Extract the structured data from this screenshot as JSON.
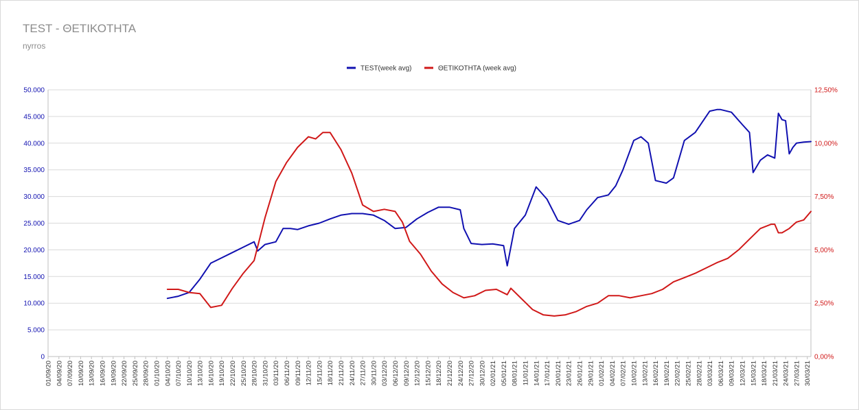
{
  "title": "TEST - ΘΕΤΙΚΟΤΗΤΑ",
  "subtitle": "nyrros",
  "colors": {
    "test": "#1010b0",
    "positivity": "#d01818",
    "grid": "#d9d9d9",
    "text": "#8c8c8c"
  },
  "chart_data": {
    "type": "line",
    "title": "TEST - ΘΕΤΙΚΟΤΗΤΑ",
    "subtitle": "nyrros",
    "legend": {
      "position": "top-center",
      "labels": [
        "TEST(week avg)",
        "ΘΕΤΙΚΟΤΗΤΑ (week avg)"
      ]
    },
    "grid": true,
    "y_left": {
      "range": [
        0,
        50000
      ],
      "ticks": [
        "0",
        "5.000",
        "10.000",
        "15.000",
        "20.000",
        "25.000",
        "30.000",
        "35.000",
        "40.000",
        "45.000",
        "50.000"
      ]
    },
    "y_right": {
      "range": [
        0,
        12.5
      ],
      "ticks": [
        "0,00%",
        "2,50%",
        "5,00%",
        "7,50%",
        "10,00%",
        "12,50%"
      ]
    },
    "x_ticks": [
      "01/09/20",
      "04/09/20",
      "07/09/20",
      "10/09/20",
      "13/09/20",
      "16/09/20",
      "19/09/20",
      "22/09/20",
      "25/09/20",
      "28/09/20",
      "01/10/20",
      "04/10/20",
      "07/10/20",
      "10/10/20",
      "13/10/20",
      "16/10/20",
      "19/10/20",
      "22/10/20",
      "25/10/20",
      "28/10/20",
      "31/10/20",
      "03/11/20",
      "06/11/20",
      "09/11/20",
      "12/11/20",
      "15/11/20",
      "18/11/20",
      "21/11/20",
      "24/11/20",
      "27/11/20",
      "30/11/20",
      "03/12/20",
      "06/12/20",
      "09/12/20",
      "12/12/20",
      "15/12/20",
      "18/12/20",
      "21/12/20",
      "24/12/20",
      "27/12/20",
      "30/12/20",
      "02/01/21",
      "05/01/21",
      "08/01/21",
      "11/01/21",
      "14/01/21",
      "17/01/21",
      "20/01/21",
      "23/01/21",
      "26/01/21",
      "29/01/21",
      "01/02/21",
      "04/02/21",
      "07/02/21",
      "10/02/21",
      "13/02/21",
      "16/02/21",
      "19/02/21",
      "22/02/21",
      "25/02/21",
      "28/02/21",
      "03/03/21",
      "06/03/21",
      "09/03/21",
      "12/03/21",
      "15/03/21",
      "18/03/21",
      "21/03/21",
      "24/03/21",
      "27/03/21",
      "30/03/21"
    ],
    "series": [
      {
        "name": "TEST(week avg)",
        "axis": "left",
        "x": [
          "04/10/20",
          "07/10/20",
          "10/10/20",
          "13/10/20",
          "16/10/20",
          "19/10/20",
          "22/10/20",
          "25/10/20",
          "28/10/20",
          "29/10/20",
          "31/10/20",
          "03/11/20",
          "05/11/20",
          "07/11/20",
          "09/11/20",
          "12/11/20",
          "15/11/20",
          "18/11/20",
          "21/11/20",
          "24/11/20",
          "27/11/20",
          "30/11/20",
          "03/12/20",
          "06/12/20",
          "09/12/20",
          "12/12/20",
          "15/12/20",
          "18/12/20",
          "21/12/20",
          "24/12/20",
          "25/12/20",
          "27/12/20",
          "30/12/20",
          "02/01/21",
          "05/01/21",
          "06/01/21",
          "08/01/21",
          "11/01/21",
          "14/01/21",
          "17/01/21",
          "20/01/21",
          "23/01/21",
          "26/01/21",
          "28/01/21",
          "31/01/21",
          "03/02/21",
          "05/02/21",
          "07/02/21",
          "10/02/21",
          "12/02/21",
          "14/02/21",
          "16/02/21",
          "19/02/21",
          "21/02/21",
          "24/02/21",
          "27/02/21",
          "01/03/21",
          "03/03/21",
          "05/03/21",
          "06/03/21",
          "09/03/21",
          "12/03/21",
          "14/03/21",
          "15/03/21",
          "17/03/21",
          "19/03/21",
          "21/03/21",
          "22/03/21",
          "23/03/21",
          "24/03/21",
          "25/03/21",
          "26/03/21",
          "27/03/21",
          "29/03/21",
          "31/03/21"
        ],
        "values": [
          10900,
          11300,
          12000,
          14500,
          17500,
          18500,
          19500,
          20500,
          21500,
          19800,
          21000,
          21500,
          24000,
          24000,
          23800,
          24500,
          25000,
          25800,
          26500,
          26800,
          26800,
          26500,
          25500,
          24000,
          24200,
          25800,
          27000,
          28000,
          28000,
          27500,
          24000,
          21200,
          21000,
          21100,
          20800,
          17000,
          24000,
          26500,
          31800,
          29500,
          25500,
          24800,
          25500,
          27500,
          29800,
          30300,
          32000,
          35000,
          40500,
          41200,
          40000,
          33000,
          32500,
          33500,
          40500,
          42000,
          44000,
          46000,
          46300,
          46300,
          45800,
          43500,
          42000,
          34500,
          36800,
          37800,
          37200,
          45600,
          44400,
          44200,
          38000,
          39200,
          40000,
          40200,
          40300
        ]
      },
      {
        "name": "ΘΕΤΙΚΟΤΗΤΑ (week avg)",
        "axis": "right",
        "x": [
          "04/10/20",
          "07/10/20",
          "10/10/20",
          "13/10/20",
          "16/10/20",
          "19/10/20",
          "22/10/20",
          "25/10/20",
          "28/10/20",
          "31/10/20",
          "03/11/20",
          "06/11/20",
          "09/11/20",
          "12/11/20",
          "14/11/20",
          "16/11/20",
          "18/11/20",
          "21/11/20",
          "24/11/20",
          "27/11/20",
          "30/11/20",
          "03/12/20",
          "06/12/20",
          "08/12/20",
          "10/12/20",
          "13/12/20",
          "16/12/20",
          "19/12/20",
          "22/12/20",
          "25/12/20",
          "28/12/20",
          "31/12/20",
          "03/01/21",
          "06/01/21",
          "07/01/21",
          "10/01/21",
          "13/01/21",
          "16/01/21",
          "19/01/21",
          "22/01/21",
          "25/01/21",
          "28/01/21",
          "31/01/21",
          "03/02/21",
          "06/02/21",
          "09/02/21",
          "12/02/21",
          "15/02/21",
          "18/02/21",
          "21/02/21",
          "24/02/21",
          "27/02/21",
          "02/03/21",
          "05/03/21",
          "08/03/21",
          "11/03/21",
          "14/03/21",
          "17/03/21",
          "20/03/21",
          "21/03/21",
          "22/03/21",
          "23/03/21",
          "25/03/21",
          "27/03/21",
          "29/03/21",
          "31/03/21"
        ],
        "values": [
          3.15,
          3.15,
          3.0,
          2.95,
          2.3,
          2.4,
          3.2,
          3.9,
          4.5,
          6.5,
          8.2,
          9.1,
          9.8,
          10.3,
          10.2,
          10.5,
          10.5,
          9.7,
          8.6,
          7.1,
          6.8,
          6.9,
          6.8,
          6.3,
          5.4,
          4.8,
          4.0,
          3.4,
          3.0,
          2.75,
          2.85,
          3.1,
          3.15,
          2.9,
          3.2,
          2.7,
          2.2,
          1.95,
          1.9,
          1.95,
          2.1,
          2.35,
          2.5,
          2.85,
          2.85,
          2.75,
          2.85,
          2.95,
          3.15,
          3.5,
          3.7,
          3.9,
          4.15,
          4.4,
          4.6,
          5.0,
          5.5,
          6.0,
          6.2,
          6.2,
          5.8,
          5.8,
          6.0,
          6.3,
          6.4,
          6.8
        ]
      }
    ]
  }
}
